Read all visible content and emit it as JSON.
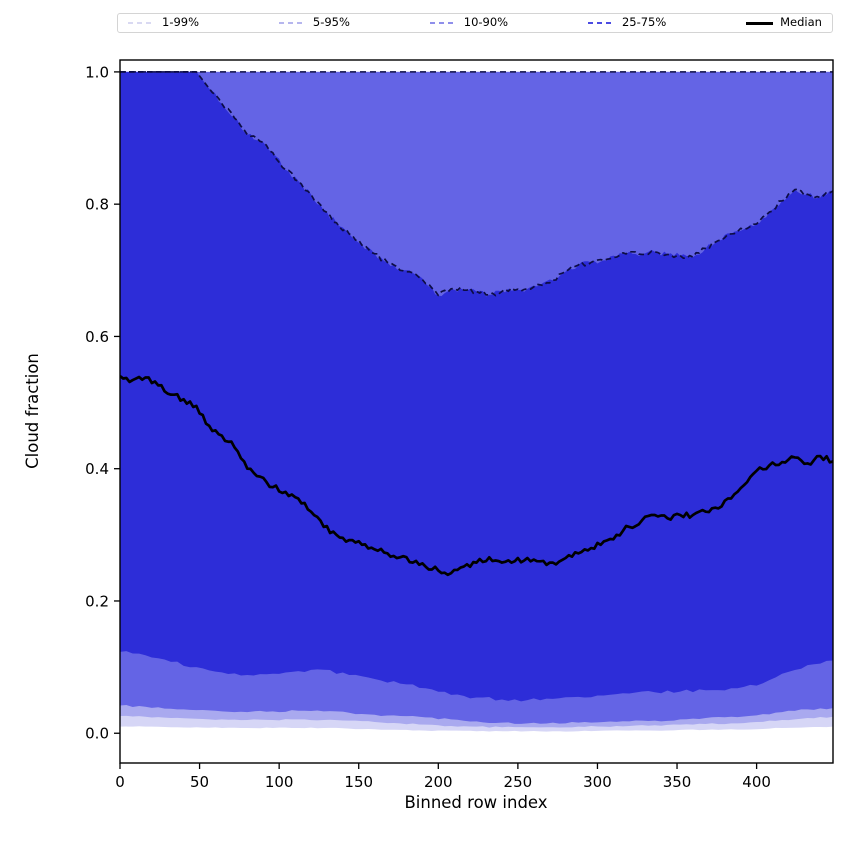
{
  "chart_data": {
    "type": "area",
    "title": "",
    "xlabel": "Binned row index",
    "ylabel": "Cloud fraction",
    "xlim": [
      0,
      448
    ],
    "ylim": [
      -0.045,
      1.018
    ],
    "grid": false,
    "legend_position": "top-outside",
    "x_ticks": [
      "0",
      "50",
      "100",
      "150",
      "200",
      "250",
      "300",
      "350",
      "400"
    ],
    "x_tick_values": [
      0,
      50,
      100,
      150,
      200,
      250,
      300,
      350,
      400
    ],
    "y_ticks": [
      "0.0",
      "0.2",
      "0.4",
      "0.6",
      "0.8",
      "1.0"
    ],
    "y_tick_values": [
      0.0,
      0.2,
      0.4,
      0.6,
      0.8,
      1.0
    ],
    "legend": [
      {
        "label": "1-99%",
        "color": "#d9d9f2",
        "style": "dashed",
        "weight": 1.5
      },
      {
        "label": "5-95%",
        "color": "#b6b6ee",
        "style": "dashed",
        "weight": 1.5
      },
      {
        "label": "10-90%",
        "color": "#8f8feb",
        "style": "dashed",
        "weight": 1.5
      },
      {
        "label": "25-75%",
        "color": "#4b4be2",
        "style": "dashed",
        "weight": 2.5
      },
      {
        "label": "Median",
        "color": "#000000",
        "style": "solid",
        "weight": 3
      }
    ],
    "band_fill_colors": {
      "band_1_99": "#d6d6f6",
      "band_5_95": "#a9a9ef",
      "band_10_90": "#6464e5",
      "band_25_75": "#2d2dd8"
    },
    "boundary_line_color": "#0d0d45",
    "median_line_color": "#000000",
    "series": [
      {
        "name": "p99_upper",
        "x0": 0,
        "dx": 448,
        "constant": 1.0
      },
      {
        "name": "p95_upper",
        "x0": 0,
        "dx": 448,
        "constant": 1.0
      },
      {
        "name": "p90_upper",
        "x0": 0,
        "dx": 448,
        "constant": 1.0
      },
      {
        "name": "p75_upper",
        "x0": 0,
        "dx": 8,
        "jitter": 0.004,
        "values": [
          1.0,
          1.0,
          1.0,
          1.0,
          1.0,
          1.0,
          1.0,
          0.975,
          0.952,
          0.93,
          0.905,
          0.895,
          0.878,
          0.852,
          0.835,
          0.815,
          0.79,
          0.772,
          0.755,
          0.738,
          0.725,
          0.712,
          0.7,
          0.696,
          0.68,
          0.662,
          0.672,
          0.67,
          0.668,
          0.663,
          0.668,
          0.67,
          0.672,
          0.678,
          0.685,
          0.698,
          0.708,
          0.712,
          0.715,
          0.72,
          0.728,
          0.724,
          0.728,
          0.724,
          0.722,
          0.72,
          0.733,
          0.745,
          0.755,
          0.762,
          0.77,
          0.788,
          0.805,
          0.822,
          0.815,
          0.81,
          0.82
        ]
      },
      {
        "name": "median",
        "x0": 0,
        "dx": 8,
        "jitter": 0.0045,
        "values": [
          0.54,
          0.534,
          0.538,
          0.526,
          0.512,
          0.505,
          0.495,
          0.465,
          0.45,
          0.432,
          0.4,
          0.388,
          0.372,
          0.365,
          0.355,
          0.335,
          0.312,
          0.3,
          0.292,
          0.285,
          0.278,
          0.272,
          0.266,
          0.258,
          0.252,
          0.246,
          0.242,
          0.252,
          0.258,
          0.266,
          0.258,
          0.26,
          0.265,
          0.26,
          0.258,
          0.265,
          0.272,
          0.28,
          0.29,
          0.3,
          0.312,
          0.322,
          0.33,
          0.325,
          0.33,
          0.33,
          0.335,
          0.34,
          0.355,
          0.375,
          0.397,
          0.405,
          0.41,
          0.417,
          0.408,
          0.419,
          0.411
        ]
      },
      {
        "name": "p25_lower",
        "x0": 0,
        "dx": 16,
        "jitter": 0.0025,
        "values": [
          0.123,
          0.118,
          0.108,
          0.1,
          0.092,
          0.088,
          0.09,
          0.094,
          0.096,
          0.088,
          0.082,
          0.075,
          0.068,
          0.058,
          0.054,
          0.051,
          0.05,
          0.052,
          0.055,
          0.057,
          0.06,
          0.062,
          0.063,
          0.065,
          0.068,
          0.072,
          0.09,
          0.103,
          0.11
        ]
      },
      {
        "name": "p10_lower",
        "x0": 0,
        "dx": 16,
        "jitter": 0.0015,
        "values": [
          0.042,
          0.04,
          0.037,
          0.035,
          0.033,
          0.032,
          0.033,
          0.034,
          0.033,
          0.031,
          0.028,
          0.026,
          0.024,
          0.021,
          0.018,
          0.016,
          0.015,
          0.016,
          0.016,
          0.017,
          0.018,
          0.019,
          0.021,
          0.023,
          0.025,
          0.027,
          0.032,
          0.036,
          0.038
        ]
      },
      {
        "name": "p5_lower",
        "x0": 0,
        "dx": 16,
        "jitter": 0.001,
        "values": [
          0.026,
          0.025,
          0.023,
          0.022,
          0.021,
          0.02,
          0.02,
          0.021,
          0.02,
          0.019,
          0.017,
          0.015,
          0.013,
          0.011,
          0.01,
          0.009,
          0.009,
          0.009,
          0.01,
          0.01,
          0.011,
          0.012,
          0.013,
          0.014,
          0.015,
          0.017,
          0.02,
          0.023,
          0.025
        ]
      },
      {
        "name": "p1_lower",
        "x0": 0,
        "dx": 16,
        "jitter": 0.0006,
        "values": [
          0.01,
          0.01,
          0.009,
          0.009,
          0.008,
          0.008,
          0.008,
          0.008,
          0.008,
          0.007,
          0.006,
          0.005,
          0.004,
          0.004,
          0.003,
          0.003,
          0.003,
          0.003,
          0.003,
          0.004,
          0.004,
          0.004,
          0.005,
          0.005,
          0.006,
          0.006,
          0.008,
          0.009,
          0.01
        ]
      }
    ]
  }
}
